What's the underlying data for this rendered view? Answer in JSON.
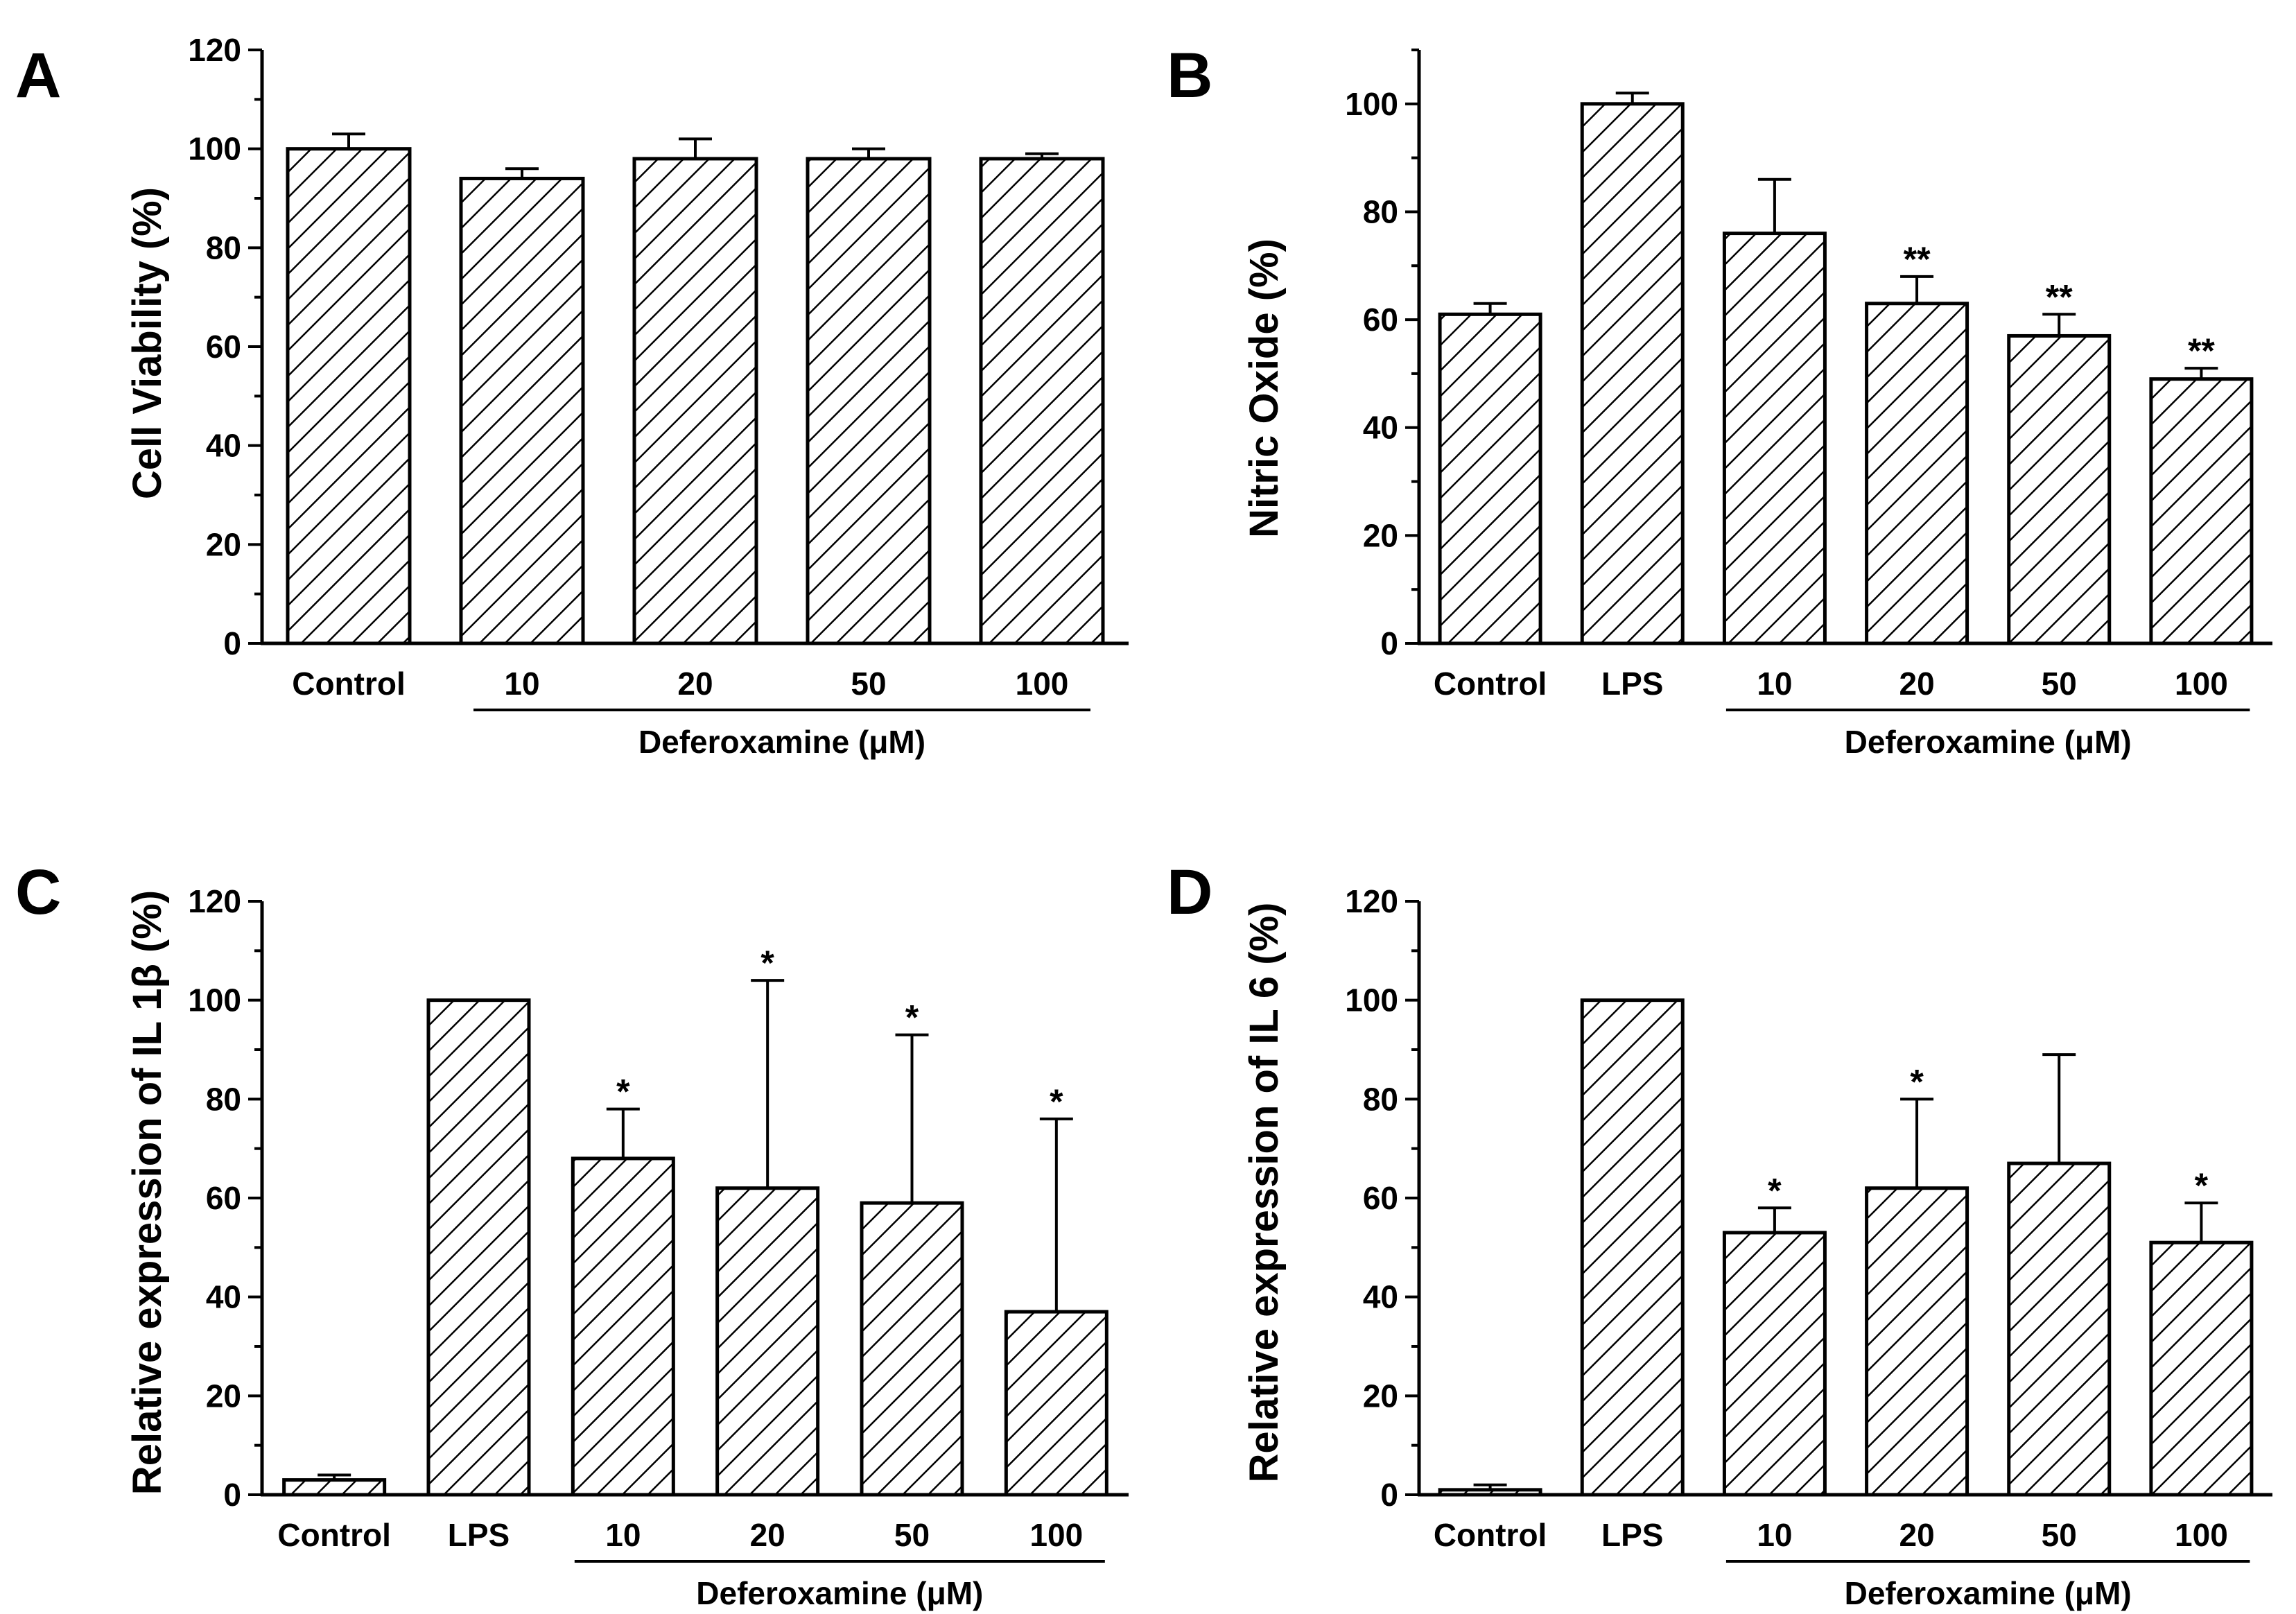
{
  "chart_data": [
    {
      "type": "bar",
      "panel": "A",
      "title": "",
      "ylabel": "Cell Viability (%)",
      "xlabel": "",
      "ylim": [
        0,
        120
      ],
      "yticks": [
        0,
        20,
        40,
        60,
        80,
        100,
        120
      ],
      "yticks_labels": [
        "0",
        "20",
        "40",
        "60",
        "80",
        "100",
        "120"
      ],
      "categories": [
        "Control",
        "10",
        "20",
        "50",
        "100"
      ],
      "values": [
        100,
        94,
        98,
        98,
        98
      ],
      "errors": [
        3,
        2,
        4,
        2,
        1
      ],
      "significance": [
        "",
        "",
        "",
        "",
        ""
      ],
      "group_label": "Deferoxamine (μM)",
      "group_range": [
        1,
        4
      ],
      "pattern": "diagonal-hatch"
    },
    {
      "type": "bar",
      "panel": "B",
      "title": "",
      "ylabel": "Nitric Oxide (%)",
      "xlabel": "",
      "ylim": [
        0,
        110
      ],
      "yticks": [
        0,
        20,
        40,
        60,
        80,
        100
      ],
      "yticks_labels": [
        "0",
        "20",
        "40",
        "60",
        "80",
        "100"
      ],
      "categories": [
        "Control",
        "LPS",
        "10",
        "20",
        "50",
        "100"
      ],
      "values": [
        61,
        100,
        76,
        63,
        57,
        49
      ],
      "errors": [
        2,
        2,
        10,
        5,
        4,
        2
      ],
      "significance": [
        "",
        "",
        "",
        "**",
        "**",
        "**"
      ],
      "group_label": "Deferoxamine (μM)",
      "group_range": [
        2,
        5
      ],
      "pattern": "diagonal-hatch"
    },
    {
      "type": "bar",
      "panel": "C",
      "title": "",
      "ylabel": "Relative expression of IL 1β (%)",
      "xlabel": "",
      "ylim": [
        0,
        120
      ],
      "yticks": [
        0,
        20,
        40,
        60,
        80,
        100,
        120
      ],
      "yticks_labels": [
        "0",
        "20",
        "40",
        "60",
        "80",
        "100",
        "120"
      ],
      "categories": [
        "Control",
        "LPS",
        "10",
        "20",
        "50",
        "100"
      ],
      "values": [
        3,
        100,
        68,
        62,
        59,
        37
      ],
      "errors": [
        1,
        0,
        10,
        42,
        34,
        39
      ],
      "significance": [
        "",
        "",
        "*",
        "*",
        "*",
        "*"
      ],
      "group_label": "Deferoxamine (μM)",
      "group_range": [
        2,
        5
      ],
      "pattern": "diagonal-hatch"
    },
    {
      "type": "bar",
      "panel": "D",
      "title": "",
      "ylabel": "Relative expression of IL 6 (%)",
      "xlabel": "",
      "ylim": [
        0,
        120
      ],
      "yticks": [
        0,
        20,
        40,
        60,
        80,
        100,
        120
      ],
      "yticks_labels": [
        "0",
        "20",
        "40",
        "60",
        "80",
        "100",
        "120"
      ],
      "categories": [
        "Control",
        "LPS",
        "10",
        "20",
        "50",
        "100"
      ],
      "values": [
        1,
        100,
        53,
        62,
        67,
        51
      ],
      "errors": [
        1,
        0,
        5,
        18,
        22,
        8
      ],
      "significance": [
        "",
        "",
        "*",
        "*",
        "",
        "*"
      ],
      "group_label": "Deferoxamine (μM)",
      "group_range": [
        2,
        5
      ],
      "pattern": "diagonal-hatch"
    }
  ]
}
